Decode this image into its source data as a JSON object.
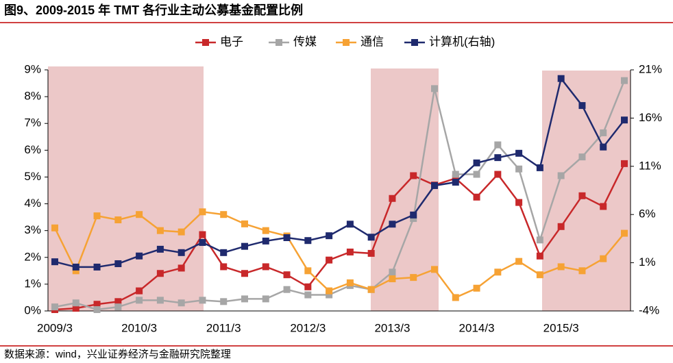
{
  "chart_data": {
    "type": "line",
    "title": "图9、2009-2015 年 TMT 各行业主动公募基金配置比例",
    "source": "数据来源：wind，兴业证券经济与金融研究院整理",
    "categories": [
      "2009/3",
      null,
      null,
      null,
      "2010/3",
      null,
      null,
      null,
      "2011/3",
      null,
      null,
      null,
      "2012/3",
      null,
      null,
      null,
      "2013/3",
      null,
      null,
      null,
      "2014/3",
      null,
      null,
      null,
      "2015/3",
      null,
      null,
      null
    ],
    "series": [
      {
        "name": "电子",
        "color": "#c8282a",
        "values": [
          0.05,
          0.1,
          0.25,
          0.35,
          0.75,
          1.4,
          1.6,
          2.85,
          1.65,
          1.4,
          1.65,
          1.35,
          0.9,
          1.9,
          2.2,
          2.15,
          4.2,
          5.05,
          4.7,
          4.95,
          4.25,
          5.1,
          4.05,
          2.05,
          3.15,
          4.3,
          3.9,
          5.5
        ]
      },
      {
        "name": "传媒",
        "color": "#a6a6a6",
        "values": [
          0.15,
          0.3,
          0.05,
          0.15,
          0.4,
          0.4,
          0.3,
          0.4,
          0.35,
          0.45,
          0.45,
          0.8,
          0.6,
          0.6,
          0.95,
          0.8,
          1.45,
          3.45,
          8.3,
          5.1,
          5.1,
          6.2,
          5.3,
          2.65,
          5.05,
          5.75,
          6.65,
          8.6
        ]
      },
      {
        "name": "通信",
        "color": "#f6a234",
        "values": [
          3.1,
          1.5,
          3.55,
          3.4,
          3.6,
          3.0,
          2.95,
          3.7,
          3.6,
          3.25,
          3.0,
          2.8,
          1.5,
          0.75,
          1.05,
          0.8,
          1.2,
          1.25,
          1.55,
          0.5,
          0.85,
          1.45,
          1.85,
          1.35,
          1.65,
          1.5,
          1.95,
          2.9
        ]
      },
      {
        "name": "计算机(右轴)",
        "color": "#1f2a6e",
        "axis": "y2",
        "values": [
          1.1,
          0.55,
          0.55,
          0.9,
          1.7,
          2.4,
          2.05,
          3.1,
          2.05,
          2.7,
          3.25,
          3.6,
          3.3,
          3.8,
          5.0,
          3.65,
          5.0,
          5.95,
          9.0,
          9.35,
          11.35,
          11.9,
          12.35,
          10.85,
          20.1,
          17.3,
          13.0,
          15.8
        ]
      }
    ],
    "ylim": [
      0,
      9
    ],
    "yticks": [
      {
        "value": 0,
        "label": "0%"
      },
      {
        "value": 1,
        "label": "1%"
      },
      {
        "value": 2,
        "label": "2%"
      },
      {
        "value": 3,
        "label": "3%"
      },
      {
        "value": 4,
        "label": "4%"
      },
      {
        "value": 5,
        "label": "5%"
      },
      {
        "value": 6,
        "label": "6%"
      },
      {
        "value": 7,
        "label": "7%"
      },
      {
        "value": 8,
        "label": "8%"
      },
      {
        "value": 9,
        "label": "9%"
      }
    ],
    "y2lim": [
      -4,
      21
    ],
    "y2ticks": [
      {
        "value": -4,
        "label": "-4%"
      },
      {
        "value": 1,
        "label": "1%"
      },
      {
        "value": 6,
        "label": "6%"
      },
      {
        "value": 11,
        "label": "11%"
      },
      {
        "value": 16,
        "label": "16%"
      },
      {
        "value": 21,
        "label": "21%"
      }
    ],
    "legend": "top"
  }
}
